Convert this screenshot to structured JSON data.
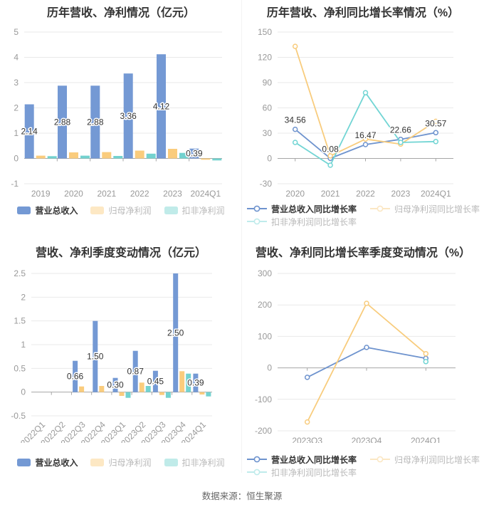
{
  "footer": {
    "source": "数据来源：恒生聚源"
  },
  "palette": {
    "revenue_blue": "#7499D4",
    "profit_orange": "#FACC7D",
    "nongaap_teal": "#73D2CF",
    "line_blue": "#6E93CE",
    "line_orange": "#F8CC7D",
    "line_teal": "#72D5D4",
    "title_text": "#333333",
    "axis_text": "#999999",
    "gridline": "#E9E9E9",
    "zero_axis": "#A6A6A6",
    "data_label": "#333333",
    "muted_legend_text": "#B9B9B9",
    "footer_text": "#666666"
  },
  "chart_data": [
    {
      "id": "annual-revenue-profit",
      "type": "bar",
      "title": "历年营收、净利情况（亿元）",
      "categories": [
        "2019",
        "2020",
        "2021",
        "2022",
        "2023",
        "2024Q1"
      ],
      "series": [
        {
          "name": "营业总收入",
          "color": "#7499D4",
          "values": [
            2.14,
            2.88,
            2.88,
            3.36,
            4.12,
            0.39
          ]
        },
        {
          "name": "归母净利润",
          "color": "#FACC7D",
          "values": [
            0.11,
            0.24,
            0.25,
            0.31,
            0.38,
            -0.05
          ]
        },
        {
          "name": "扣非净利润",
          "color": "#73D2CF",
          "values": [
            0.09,
            0.11,
            0.1,
            0.19,
            0.22,
            -0.08
          ]
        }
      ],
      "bar_labels": [
        "2.14",
        "2.88",
        "2.88",
        "3.36",
        "4.12",
        "0.39"
      ],
      "ylim": [
        -1,
        5
      ],
      "yticks": [
        -1,
        0,
        1,
        2,
        3,
        4,
        5
      ],
      "grid": true,
      "legend_position": "bottom"
    },
    {
      "id": "annual-growth-rate",
      "type": "line",
      "title": "历年营收、净利同比增长率情况（%）",
      "categories": [
        "2020",
        "2021",
        "2022",
        "2023",
        "2024Q1"
      ],
      "series": [
        {
          "name": "营业总收入同比增长率",
          "color": "#6E93CE",
          "values": [
            34.56,
            0.08,
            16.47,
            22.66,
            30.57
          ]
        },
        {
          "name": "归母净利润同比增长率",
          "color": "#F8CC7D",
          "values": [
            133,
            3,
            23,
            17,
            44
          ]
        },
        {
          "name": "扣非净利润同比增长率",
          "color": "#72D5D4",
          "values": [
            19,
            -8,
            78,
            19,
            20
          ]
        }
      ],
      "point_labels": [
        "34.56",
        "0.08",
        "16.47",
        "22.66",
        "30.57"
      ],
      "ylim": [
        -30,
        150
      ],
      "yticks": [
        -30,
        0,
        30,
        60,
        90,
        120,
        150
      ],
      "grid": true,
      "legend_position": "bottom"
    },
    {
      "id": "quarterly-revenue-profit",
      "type": "bar",
      "title": "营收、净利季度变动情况（亿元）",
      "categories": [
        "2022Q1",
        "2022Q2",
        "2022Q3",
        "2022Q4",
        "2023Q1",
        "2023Q2",
        "2023Q3",
        "2023Q4",
        "2024Q1"
      ],
      "series": [
        {
          "name": "营业总收入",
          "color": "#7499D4",
          "values": [
            0,
            0,
            0.66,
            1.5,
            0.3,
            0.87,
            0.45,
            2.5,
            0.39
          ]
        },
        {
          "name": "归母净利润",
          "color": "#FACC7D",
          "values": [
            0,
            0,
            0.12,
            0.13,
            -0.08,
            0.2,
            -0.06,
            0.44,
            -0.05
          ]
        },
        {
          "name": "扣非净利润",
          "color": "#73D2CF",
          "values": [
            0,
            0,
            0,
            0,
            -0.12,
            0.13,
            -0.12,
            0.39,
            -0.09
          ]
        }
      ],
      "bar_labels": [
        null,
        null,
        "0.66",
        "1.50",
        "0.30",
        "0.87",
        "0.45",
        "2.50",
        "0.39"
      ],
      "ylim": [
        -0.5,
        2.5
      ],
      "yticks": [
        -0.5,
        0,
        0.5,
        1,
        1.5,
        2,
        2.5
      ],
      "grid": true,
      "rotate_x_labels": true,
      "legend_position": "bottom"
    },
    {
      "id": "quarterly-growth-rate",
      "type": "line",
      "title": "营收、净利同比增长率季度变动情况（%）",
      "categories": [
        "2023Q3",
        "2023Q4",
        "2024Q1"
      ],
      "series": [
        {
          "name": "营业总收入同比增长率",
          "color": "#6E93CE",
          "values": [
            -30,
            65,
            30
          ]
        },
        {
          "name": "归母净利润同比增长率",
          "color": "#F8CC7D",
          "values": [
            -172,
            205,
            45
          ]
        },
        {
          "name": "扣非净利润同比增长率",
          "color": "#72D5D4",
          "values": [
            null,
            null,
            20
          ]
        }
      ],
      "point_labels": [],
      "ylim": [
        -200,
        300
      ],
      "yticks": [
        -200,
        -100,
        0,
        100,
        200,
        300
      ],
      "grid": true,
      "legend_position": "bottom"
    }
  ]
}
